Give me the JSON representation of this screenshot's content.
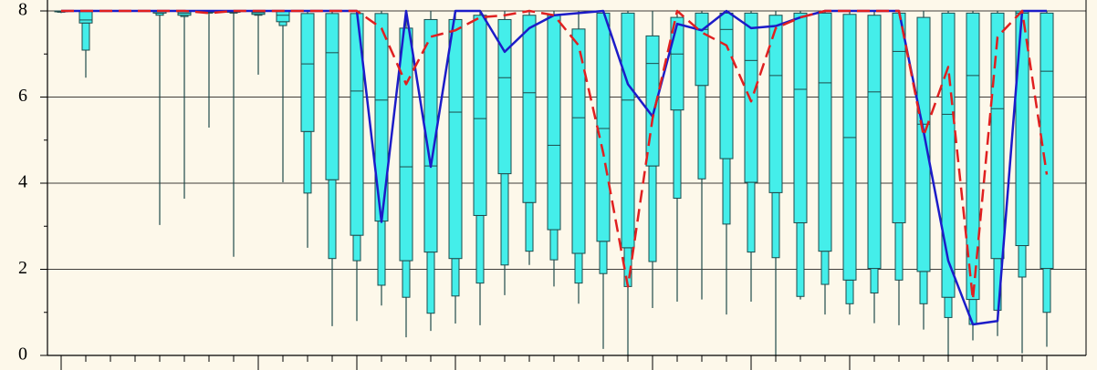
{
  "chart_data": {
    "type": "box",
    "categories": [
      null,
      null,
      null,
      null,
      null,
      null,
      null,
      null,
      null,
      null,
      null,
      null,
      null,
      null,
      null,
      null,
      null,
      null,
      null,
      null,
      null,
      null,
      null,
      null,
      null,
      null,
      null,
      null,
      null,
      null,
      null,
      null,
      null,
      null,
      null,
      null,
      null,
      null,
      null,
      null,
      null
    ],
    "ylim": [
      0,
      8
    ],
    "yticks": [
      0,
      2,
      4,
      6,
      8
    ],
    "y_minor_ticks": [
      1,
      3,
      5,
      7
    ],
    "grid": true,
    "box_color": "#44eeea",
    "box_edge_color": "#1f4a4a",
    "boxes": {
      "whisker_low": [
        7.95,
        6.45,
        7.98,
        7.98,
        3.03,
        3.64,
        5.29,
        2.29,
        6.52,
        4.02,
        2.5,
        0.68,
        0.8,
        1.16,
        0.42,
        0.57,
        0.74,
        0.7,
        1.4,
        2.1,
        1.6,
        1.2,
        0.15,
        0,
        1.1,
        1.25,
        1.3,
        0.95,
        1.25,
        0,
        1.3,
        0.95,
        0.95,
        0.75,
        0.7,
        0.6,
        0,
        0.35,
        0.45,
        0.05,
        0.2
      ],
      "p10": [
        7.97,
        7.09,
        7.99,
        7.99,
        7.9,
        7.87,
        7.95,
        7.95,
        7.9,
        7.66,
        3.77,
        2.25,
        2.2,
        1.63,
        1.35,
        0.98,
        1.38,
        1.68,
        2.1,
        2.42,
        2.22,
        1.68,
        1.9,
        1.6,
        2.18,
        3.65,
        4.1,
        3.05,
        2.4,
        2.27,
        1.37,
        1.65,
        1.2,
        1.45,
        1.75,
        1.2,
        0.88,
        0.72,
        1.05,
        1.82,
        1.0
      ],
      "q1": [
        7.98,
        7.72,
        7.99,
        7.99,
        7.95,
        7.9,
        7.97,
        7.97,
        7.92,
        7.75,
        5.2,
        4.08,
        2.79,
        3.12,
        2.2,
        2.4,
        2.25,
        3.25,
        4.22,
        3.55,
        2.92,
        2.37,
        2.65,
        2.5,
        4.4,
        5.7,
        6.27,
        4.57,
        4.02,
        3.78,
        3.08,
        2.42,
        1.75,
        2.02,
        3.08,
        1.95,
        1.35,
        1.3,
        2.25,
        2.55,
        2.02
      ],
      "median": [
        7.99,
        7.79,
        8,
        8,
        7.98,
        7.95,
        7.98,
        7.98,
        7.96,
        7.9,
        6.77,
        7.03,
        6.14,
        5.93,
        4.38,
        4.4,
        5.65,
        5.5,
        6.45,
        6.1,
        4.88,
        5.52,
        5.27,
        5.93,
        6.78,
        7.0,
        7.57,
        7.57,
        6.85,
        6.5,
        6.18,
        6.33,
        5.06,
        6.12,
        7.06,
        5.37,
        5.6,
        6.5,
        5.73,
        7.95,
        6.6
      ],
      "q3": [
        8,
        8,
        8,
        8,
        8,
        8,
        8,
        8,
        8,
        8,
        7.94,
        7.94,
        7.94,
        7.94,
        7.6,
        7.8,
        7.8,
        7.9,
        7.8,
        7.9,
        7.9,
        7.58,
        7.95,
        7.95,
        7.42,
        7.85,
        7.95,
        7.95,
        7.95,
        7.9,
        7.95,
        7.95,
        7.92,
        7.9,
        7.95,
        7.85,
        7.95,
        7.95,
        7.95,
        8,
        7.95
      ],
      "whisker_high": [
        8,
        8,
        8,
        8,
        8,
        8,
        8,
        8,
        8,
        8,
        8,
        8,
        8,
        8,
        8,
        8,
        8,
        8,
        8,
        8,
        8,
        8,
        8,
        8,
        8,
        8,
        8,
        8,
        8,
        8,
        8,
        8,
        8,
        8,
        8,
        8,
        8,
        8,
        8,
        8,
        8
      ]
    },
    "series": [
      {
        "color": "#1c1cc8",
        "style": "solid",
        "values": [
          8,
          8,
          8,
          8,
          8,
          8,
          8,
          8,
          8,
          8,
          8,
          8,
          8,
          3.1,
          8,
          4.38,
          8,
          8,
          7.05,
          7.6,
          7.9,
          7.95,
          8,
          6.3,
          5.55,
          7.7,
          7.55,
          8,
          7.6,
          7.65,
          7.85,
          8,
          8,
          8,
          8,
          5.2,
          2.2,
          0.72,
          0.8,
          8,
          8
        ]
      },
      {
        "color": "#e02020",
        "style": "dashed",
        "values": [
          8,
          8,
          8,
          8,
          8,
          8,
          7.95,
          8,
          8,
          8,
          8,
          8,
          8,
          7.6,
          6.3,
          7.4,
          7.55,
          7.85,
          7.9,
          8,
          7.9,
          7.2,
          4.7,
          1.6,
          5.5,
          8,
          7.5,
          7.2,
          5.9,
          7.6,
          7.85,
          8,
          8,
          8,
          8,
          5.1,
          6.7,
          1.3,
          7.4,
          8,
          4.2
        ]
      }
    ]
  }
}
